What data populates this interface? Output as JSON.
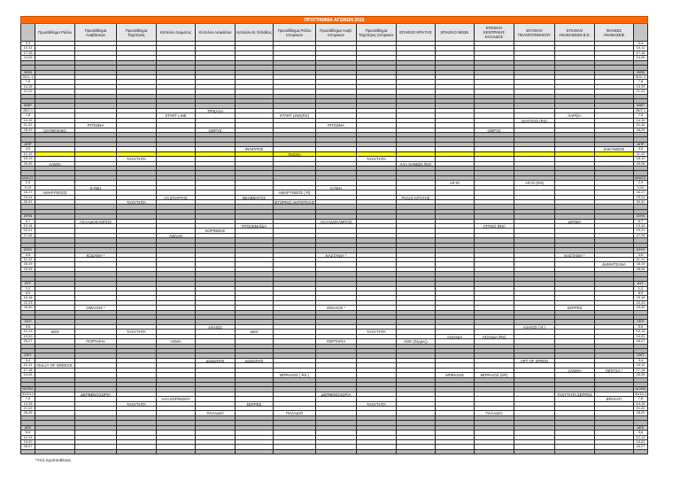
{
  "title": "ΠΡΟΓΡΑΜΜΑ ΑΓΩΝΩΝ 2015",
  "columns": [
    "Πρωτάθλημα Ράλλυ",
    "Πρωτάθλημα Αναβάσεων",
    "Πρωτάθλημα Ταχύτητας",
    "Κύπελλο Χώματος",
    "Κύπελλο Ασφάλτου",
    "Κύπελλο Β. Ελλάδος",
    "Πρωτάθλημα Ράλλυ Ιστορικών",
    "Πρωτάθλημα Αναβ. Ιστορικών",
    "Πρωτάθλημα Ταχύτητας Ιστορικών",
    "ΕΠΑΘΛΟ ΚΡΗΤΗΣ",
    "ΕΠΑΘΛΟ ΝΕΩΝ",
    "ΕΠΑΘΛΟ ΚΕΝΤΡΙΚΗΣ ΕΛΛΑΔΟΣ",
    "ΕΠΑΘΛΟ ΠΕΛΟΠΟΝΝΗΣΟΥ",
    "ΕΠΑΘΛΟ ΑΝΑΒΑΣΕΩΝ Β.Ε.",
    "ΦΙΛΙΚΕΣ ΑΝΑΒΑΣΕΙΣ"
  ],
  "colors": {
    "title_bar": "#ff6a00",
    "highlight_row": "#ffff00",
    "grey_row": "#b9b9b9"
  },
  "months": [
    {
      "label": "",
      "dates": [
        {
          "d": "3,4",
          "ev": []
        },
        {
          "d": "10,11",
          "ev": []
        },
        {
          "d": "17,18",
          "ev": []
        },
        {
          "d": "24,25",
          "ev": []
        }
      ]
    },
    {
      "label": "ΦΕΒ",
      "dates": [
        {
          "d": "31/1, 1",
          "ev": []
        },
        {
          "d": "7,8",
          "ev": []
        },
        {
          "d": "14,15",
          "ev": []
        },
        {
          "d": "21,22",
          "ev": []
        }
      ]
    },
    {
      "label": "ΜΑΡ",
      "dates": [
        {
          "d": "28/2,1",
          "ev": [
            {
              "c": 5,
              "t": "ΤΡΙΚΑΛΑ"
            }
          ]
        },
        {
          "d": "7,8",
          "ev": [
            {
              "c": 4,
              "t": "START LINE"
            },
            {
              "c": 7,
              "t": "START LINE(RS)"
            },
            {
              "c": 14,
              "t": "ΛΑΡΙΣΑ"
            }
          ]
        },
        {
          "d": "14,15",
          "ev": [
            {
              "c": 13,
              "t": "ΝΑΥΠΛΙΟ (RS)"
            }
          ]
        },
        {
          "d": "21,22",
          "ev": [
            {
              "c": 2,
              "t": "ΡΙΤΣΩΝΑ"
            },
            {
              "c": 8,
              "t": "ΡΙΤΣΩΝΑ"
            }
          ]
        },
        {
          "d": "28,29",
          "ev": [
            {
              "c": 1,
              "t": "ΟΛΥΜΠΙΑΚΟ"
            },
            {
              "c": 5,
              "t": "ΟΘΡΥΣ"
            },
            {
              "c": 12,
              "t": "ΟΘΡΥΣ"
            }
          ]
        }
      ]
    },
    {
      "label": "ΑΠΡ",
      "dates": [
        {
          "d": "4,5",
          "ev": [
            {
              "c": 6,
              "t": "ΦΙΛΙΠΠΟΣ"
            },
            {
              "c": 15,
              "t": "ΖΑΚΥΝΘΟΣ"
            }
          ]
        },
        {
          "d": "11,12",
          "highlight": true,
          "ev": [
            {
              "c": 7,
              "t": "ΠΑΣΧΑ"
            }
          ]
        },
        {
          "d": "18,19",
          "ev": [
            {
              "c": 3,
              "t": "ΤΑΧΥΤΗΤΑ"
            },
            {
              "c": 9,
              "t": "ΤΑΧΥΤΗΤΑ"
            }
          ]
        },
        {
          "d": "25,26",
          "ev": [
            {
              "c": 1,
              "t": "ΛΑΜΙΑ"
            },
            {
              "c": 10,
              "t": "ΑΛΑ ΧΑΝΙΩΝ (RS)"
            }
          ]
        }
      ]
    },
    {
      "label": "ΜΑΙΟΣ",
      "dates": [
        {
          "d": "2,3",
          "ev": [
            {
              "c": 11,
              "t": "ΑΙΓΙΟ"
            },
            {
              "c": 13,
              "t": "ΑΙΓΙΟ (RS)"
            }
          ]
        },
        {
          "d": "9,10",
          "ev": [
            {
              "c": 2,
              "t": "ΚΥΜΗ"
            },
            {
              "c": 8,
              "t": "ΚΥΜΗ"
            }
          ]
        },
        {
          "d": "16,17",
          "ev": [
            {
              "c": 1,
              "t": "ΑΜΑΡΥΝΘΟΣ"
            },
            {
              "c": 7,
              "t": "ΑΜΑΡΥΝΘΟΣ ( R)"
            }
          ]
        },
        {
          "d": "23,24",
          "ev": [
            {
              "c": 4,
              "t": "ΑΛ ΣΠΑΡΤΗΣ"
            },
            {
              "c": 6,
              "t": "ΒΕΛΒΕΝΤΟΣ"
            },
            {
              "c": 10,
              "t": "ΡΑΛΛΥ ΚΡΗΤΗΣ"
            }
          ]
        },
        {
          "d": "30,31",
          "ev": [
            {
              "c": 3,
              "t": "ΤΑΧΥΤΗΤΑ"
            },
            {
              "c": 7,
              "t": "ΙΣΤΟΡΙΚΟ ΑΚΡΟΠΟΛΙΣ"
            }
          ]
        }
      ]
    },
    {
      "label": "ΙΟΥΝ",
      "dates": [
        {
          "d": "6,7",
          "ev": [
            {
              "c": 2,
              "t": "ΑΚΛΑΔΟΚΑΜΠΟΣ"
            },
            {
              "c": 8,
              "t": "ΑΚΛΑΔΟΚΑΜΠΟΣ"
            },
            {
              "c": 14,
              "t": "ΔΡΑΜΑ"
            }
          ]
        },
        {
          "d": "13,14",
          "ev": [
            {
              "c": 6,
              "t": "ΠΤΟΛΕΜΑΪΔΑ"
            },
            {
              "c": 12,
              "t": "ΑΤΤΙΚΟ (RS)"
            }
          ]
        },
        {
          "d": "20,21",
          "ev": [
            {
              "c": 5,
              "t": "ΚΟΡΙΝΘΟΣ"
            }
          ]
        },
        {
          "d": "27,28",
          "ev": [
            {
              "c": 4,
              "t": "ΑΘΛΑΠ"
            }
          ]
        }
      ]
    },
    {
      "label": "ΙΟΥΛ",
      "dates": [
        {
          "d": "4,5",
          "ev": [
            {
              "c": 2,
              "t": "ΚΟΖΑΝΗ *"
            },
            {
              "c": 8,
              "t": "ΚΑΣΤΑΝΙΑ *"
            },
            {
              "c": 14,
              "t": "ΚΑΣΤΑΝΙΑ *"
            }
          ]
        },
        {
          "d": "11,12",
          "ev": []
        },
        {
          "d": "18,19",
          "ev": [
            {
              "c": 15,
              "t": "ΔΗΜΗΤΣΑΝΑ"
            }
          ]
        },
        {
          "d": "25,26",
          "ev": []
        }
      ]
    },
    {
      "label": "ΑΥΓ",
      "dates": [
        {
          "d": "1,2",
          "ev": []
        },
        {
          "d": "8,9",
          "ev": []
        },
        {
          "d": "15,16",
          "ev": []
        },
        {
          "d": "22,23",
          "ev": []
        },
        {
          "d": "29,30",
          "ev": [
            {
              "c": 2,
              "t": "ΟΜΑΛΟΣ *"
            },
            {
              "c": 8,
              "t": "ΟΜΑΛΟΣ *"
            },
            {
              "c": 14,
              "t": "ΣΕΡΡΕΣ"
            }
          ]
        }
      ]
    },
    {
      "label": "ΣΕΠ",
      "dates": [
        {
          "d": "5,6",
          "ev": [
            {
              "c": 5,
              "t": "ΑΧΑΙΟΣ"
            },
            {
              "c": 13,
              "t": "ΑΧΑΙΟΣ ( R )"
            }
          ]
        },
        {
          "d": "12,13",
          "ev": [
            {
              "c": 1,
              "t": "ΔΕΘ"
            },
            {
              "c": 3,
              "t": "ΤΑΧΥΤΗΤΑ"
            },
            {
              "c": 6,
              "t": "ΔΕΘ"
            },
            {
              "c": 9,
              "t": "ΤΑΧΥΤΗΤΑ"
            }
          ]
        },
        {
          "d": "19,20",
          "ev": [
            {
              "c": 11,
              "t": "ΑΣΣΟΔΑ"
            },
            {
              "c": 12,
              "t": "ΑΣΣΟΔΑ (RS)"
            }
          ]
        },
        {
          "d": "26,27",
          "ev": [
            {
              "c": 2,
              "t": "ΠΟΡΤΑΡΙΑ"
            },
            {
              "c": 4,
              "t": "ΑΣΜΑ"
            },
            {
              "c": 8,
              "t": "ΠΟΡΤΑΡΙΑ"
            },
            {
              "c": 10,
              "t": "ΑΟΚ (Σέρρες)"
            }
          ]
        }
      ]
    },
    {
      "label": "ΟΚΤ",
      "dates": [
        {
          "d": "3,4",
          "ev": [
            {
              "c": 5,
              "t": "ΔΩΔΩΝΗΣ"
            },
            {
              "c": 6,
              "t": "ΔΩΔΩΝΗΣ"
            },
            {
              "c": 13,
              "t": "ART OF SPEED"
            }
          ]
        },
        {
          "d": "10,11",
          "ev": [
            {
              "c": 1,
              "t": "RALLY OF GREECE"
            }
          ]
        },
        {
          "d": "17,18",
          "ev": [
            {
              "c": 14,
              "t": "ΞΑΝΘΗ"
            },
            {
              "c": 15,
              "t": "ΠΙΠΙΤΣΑ *"
            }
          ]
        },
        {
          "d": "24,25",
          "ev": [
            {
              "c": 7,
              "t": "ΜΠΡΑΛΟΣ ( RS )"
            },
            {
              "c": 11,
              "t": "ΜΠΡΑΛΟΣ"
            },
            {
              "c": 12,
              "t": "ΜΠΡΑΛΟΣ (SP)"
            }
          ]
        }
      ]
    },
    {
      "label": "ΝΟΕΜ",
      "dates": [
        {
          "d": "31/10,1",
          "ev": [
            {
              "c": 2,
              "t": "ΔΕΡΒΕΝΟΧΩΡΙΑ"
            },
            {
              "c": 8,
              "t": "ΔΕΡΒΕΝΟΧΩΡΙΑ"
            },
            {
              "c": 14,
              "t": "ΤΑΧΥΤΗΤΑ ΣΕΡΡΕΣ"
            }
          ]
        },
        {
          "d": "7,8",
          "ev": [
            {
              "c": 4,
              "t": "ΑΛΑ ΚΟΡΙΝΘΟΥ"
            },
            {
              "c": 15,
              "t": "ΒΡΑΧΑΤΙ"
            }
          ]
        },
        {
          "d": "14,15",
          "ev": [
            {
              "c": 3,
              "t": "ΤΑΧΥΤΗΤΑ"
            },
            {
              "c": 6,
              "t": "ΣΕΡΡΕΣ"
            },
            {
              "c": 9,
              "t": "ΤΑΧΥΤΗΤΑ"
            }
          ]
        },
        {
          "d": "21,22",
          "ev": []
        },
        {
          "d": "28,29",
          "ev": [
            {
              "c": 5,
              "t": "ΠΑΛΑΔΙΟ"
            },
            {
              "c": 7,
              "t": "ΠΑΛΑΔΙΟ"
            },
            {
              "c": 12,
              "t": "ΠΑΛΑΔΙΟ"
            }
          ]
        }
      ]
    },
    {
      "label": "ΔΕΚ",
      "dates": [
        {
          "d": "5,6",
          "ev": []
        },
        {
          "d": "12,13",
          "ev": []
        },
        {
          "d": "19,20",
          "ev": []
        },
        {
          "d": "26,27",
          "ev": []
        }
      ]
    }
  ],
  "footnote": "*Υπό προϋποθέσεις"
}
